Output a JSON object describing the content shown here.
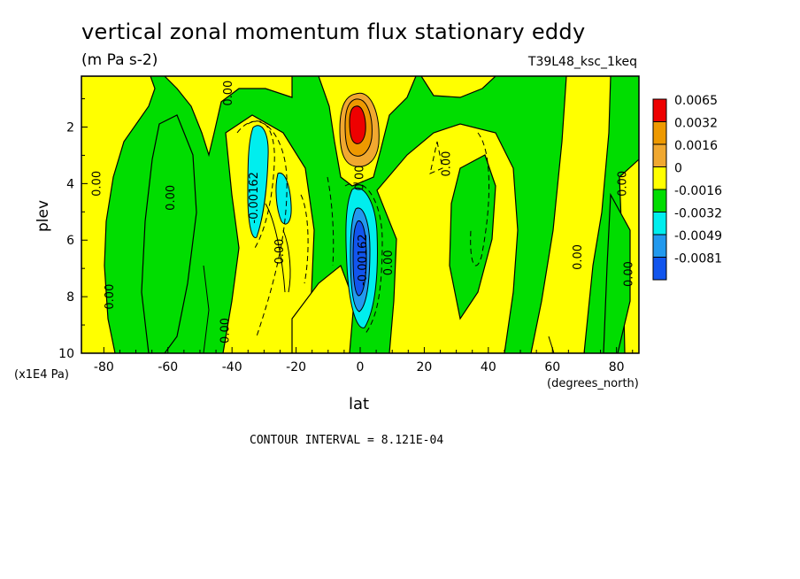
{
  "title": "vertical zonal momentum flux stationary eddy",
  "subtitle": "(m Pa s-2)",
  "run_label": "T39L48_ksc_1keq",
  "contour_interval": "CONTOUR INTERVAL = 8.121E-04",
  "chart_data": {
    "type": "heatmap",
    "title": "vertical zonal momentum flux stationary eddy",
    "xlabel": "lat",
    "x_units": "(degrees_north)",
    "ylabel": "plev",
    "y_units": "(x1E4 Pa)",
    "xlim": [
      -87,
      87
    ],
    "ylim": [
      10,
      0.2
    ],
    "x_ticks": [
      -80,
      -60,
      -40,
      -20,
      0,
      20,
      40,
      60,
      80
    ],
    "y_ticks": [
      2,
      4,
      6,
      8,
      10
    ],
    "legend": {
      "placement": "right",
      "labels": [
        "0.0065",
        "0.0032",
        "0.0016",
        "0",
        "-0.0016",
        "-0.0032",
        "-0.0049",
        "-0.0081"
      ],
      "colors": [
        "#ee0000",
        "#ee9900",
        "#f0a830",
        "#ffff00",
        "#00dd00",
        "#00eeee",
        "#2299ee",
        "#1155ee"
      ]
    },
    "contour_labels": [
      {
        "text": "0.00",
        "lat": -40,
        "plev": 0.8
      },
      {
        "text": "0.00",
        "lat": -81,
        "plev": 4.0
      },
      {
        "text": "0.00",
        "lat": -58,
        "plev": 4.5
      },
      {
        "text": "-0.00162",
        "lat": -32,
        "plev": 4.5
      },
      {
        "text": "0.00",
        "lat": -24,
        "plev": 6.4
      },
      {
        "text": "0.00",
        "lat": -77,
        "plev": 8.0
      },
      {
        "text": "0.00",
        "lat": -41,
        "plev": 9.2
      },
      {
        "text": "0.00",
        "lat": 1,
        "plev": 3.8
      },
      {
        "text": "-0.00162",
        "lat": 2,
        "plev": 6.7
      },
      {
        "text": "0.00",
        "lat": 10,
        "plev": 6.8
      },
      {
        "text": "0.00",
        "lat": 28,
        "plev": 3.3
      },
      {
        "text": "0.00",
        "lat": 69,
        "plev": 6.6
      },
      {
        "text": "0.00",
        "lat": 83,
        "plev": 4.0
      },
      {
        "text": "0.00",
        "lat": 85,
        "plev": 7.2
      }
    ]
  }
}
